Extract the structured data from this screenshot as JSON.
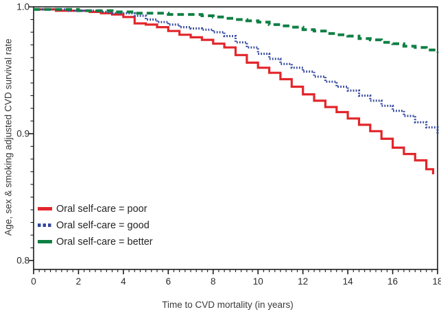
{
  "chart_data": {
    "type": "line",
    "subtype": "kaplan-meier-step",
    "title": "",
    "xlabel": "Time to CVD mortality (in years)",
    "ylabel": "Age, sex & smoking adjusted CVD survival rate",
    "xlim": [
      0,
      18
    ],
    "ylim": [
      0.8,
      1.0
    ],
    "x_major_ticks": [
      0,
      2,
      4,
      6,
      8,
      10,
      12,
      14,
      16,
      18
    ],
    "x_minor_step": 0.25,
    "y_major_ticks": [
      1.0,
      0.9,
      0.8
    ],
    "y_minor_step": 0.01,
    "grid": false,
    "frame": true,
    "legend_position": "inside-lower-left",
    "series": [
      {
        "name": "Oral self-care = poor",
        "color": "#e2262b",
        "line_style": "solid",
        "x": [
          0,
          0.5,
          1,
          1.5,
          2,
          2.5,
          3,
          3.5,
          4,
          4.5,
          5,
          5.5,
          6,
          6.5,
          7,
          7.5,
          8,
          8.5,
          9,
          9.5,
          10,
          10.5,
          11,
          11.5,
          12,
          12.5,
          13,
          13.5,
          14,
          14.5,
          15,
          15.5,
          16,
          16.5,
          17,
          17.5,
          17.8
        ],
        "values": [
          0.998,
          0.998,
          0.997,
          0.997,
          0.997,
          0.996,
          0.995,
          0.994,
          0.992,
          0.987,
          0.986,
          0.984,
          0.981,
          0.978,
          0.976,
          0.974,
          0.971,
          0.968,
          0.962,
          0.956,
          0.952,
          0.948,
          0.943,
          0.937,
          0.931,
          0.926,
          0.921,
          0.917,
          0.912,
          0.907,
          0.902,
          0.896,
          0.889,
          0.884,
          0.879,
          0.872,
          0.868
        ]
      },
      {
        "name": "Oral self-care = good",
        "color": "#34489e",
        "line_style": "dotted",
        "x": [
          0,
          0.5,
          1,
          1.5,
          2,
          2.5,
          3,
          3.5,
          4,
          4.5,
          5,
          5.5,
          6,
          6.5,
          7,
          7.5,
          8,
          8.5,
          9,
          9.5,
          10,
          10.5,
          11,
          11.5,
          12,
          12.5,
          13,
          13.5,
          14,
          14.5,
          15,
          15.5,
          16,
          16.5,
          17,
          17.5,
          18
        ],
        "values": [
          0.998,
          0.998,
          0.998,
          0.997,
          0.997,
          0.997,
          0.996,
          0.995,
          0.995,
          0.993,
          0.99,
          0.988,
          0.986,
          0.984,
          0.983,
          0.982,
          0.98,
          0.977,
          0.972,
          0.968,
          0.963,
          0.959,
          0.955,
          0.952,
          0.949,
          0.945,
          0.941,
          0.937,
          0.934,
          0.93,
          0.926,
          0.922,
          0.918,
          0.914,
          0.909,
          0.905,
          0.9
        ]
      },
      {
        "name": "Oral self-care = better",
        "color": "#0f7f44",
        "line_style": "dashed",
        "x": [
          0,
          0.5,
          1,
          1.5,
          2,
          2.5,
          3,
          3.5,
          4,
          4.5,
          5,
          5.5,
          6,
          6.5,
          7,
          7.5,
          8,
          8.5,
          9,
          9.5,
          10,
          10.5,
          11,
          11.5,
          12,
          12.5,
          13,
          13.5,
          14,
          14.5,
          15,
          15.5,
          16,
          16.5,
          17,
          17.5,
          18
        ],
        "values": [
          0.998,
          0.998,
          0.998,
          0.998,
          0.997,
          0.997,
          0.997,
          0.996,
          0.996,
          0.995,
          0.995,
          0.995,
          0.994,
          0.994,
          0.994,
          0.993,
          0.992,
          0.991,
          0.99,
          0.989,
          0.988,
          0.986,
          0.985,
          0.984,
          0.982,
          0.981,
          0.979,
          0.978,
          0.977,
          0.975,
          0.974,
          0.972,
          0.971,
          0.969,
          0.968,
          0.966,
          0.964
        ]
      }
    ]
  },
  "axis_style": {
    "axis_color": "#1a1a1a",
    "tick_label_color": "#2b2b2b",
    "axis_title_color": "#3a3a3a"
  }
}
